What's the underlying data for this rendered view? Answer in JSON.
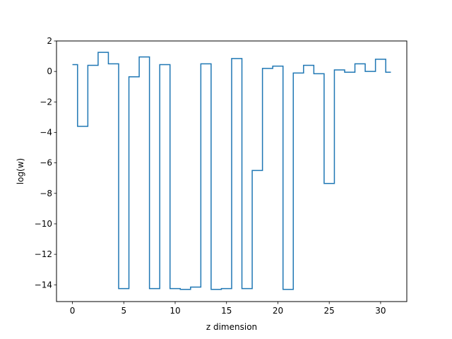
{
  "chart_data": {
    "type": "line",
    "drawstyle": "steps-mid",
    "title": "",
    "xlabel": "z dimension",
    "ylabel": "log(w)",
    "xlim": [
      -1.55,
      32.55
    ],
    "ylim": [
      -15.1,
      2.0
    ],
    "xticks": [
      0,
      5,
      10,
      15,
      20,
      25,
      30
    ],
    "yticks": [
      2,
      0,
      -2,
      -4,
      -6,
      -8,
      -10,
      -12,
      -14
    ],
    "grid": false,
    "legend": "none",
    "series": [
      {
        "color": "#1f77b4",
        "x": [
          0,
          1,
          2,
          3,
          4,
          5,
          6,
          7,
          8,
          9,
          10,
          11,
          12,
          13,
          14,
          15,
          16,
          17,
          18,
          19,
          20,
          21,
          22,
          23,
          24,
          25,
          26,
          27,
          28,
          29,
          30,
          31
        ],
        "y": [
          0.45,
          -3.6,
          0.4,
          1.25,
          0.5,
          -14.25,
          -0.35,
          0.95,
          -14.25,
          0.45,
          -14.25,
          -14.3,
          -14.15,
          0.5,
          -14.3,
          -14.25,
          0.85,
          -14.25,
          -6.5,
          0.2,
          0.35,
          -14.3,
          -0.1,
          0.4,
          -0.15,
          -7.35,
          0.1,
          -0.05,
          0.5,
          0.0,
          0.8,
          -0.05
        ]
      }
    ]
  }
}
